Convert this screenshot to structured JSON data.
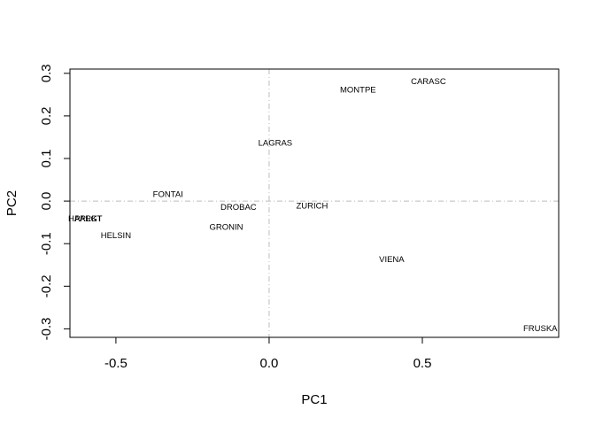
{
  "chart_data": {
    "type": "scatter",
    "title": "",
    "xlabel": "PC1",
    "ylabel": "PC2",
    "xlim": [
      -0.65,
      0.945
    ],
    "ylim": [
      -0.32,
      0.31
    ],
    "x_ticks": [
      -0.5,
      0.0,
      0.5
    ],
    "x_tick_labels": [
      "-0.5",
      "0.0",
      "0.5"
    ],
    "y_ticks": [
      -0.3,
      -0.2,
      -0.1,
      0.0,
      0.1,
      0.2,
      0.3
    ],
    "y_tick_labels": [
      "-0.3",
      "-0.2",
      "-0.1",
      "0.0",
      "0.1",
      "0.2",
      "0.3"
    ],
    "reference_lines": {
      "x": 0.0,
      "y": 0.0,
      "style": "dash-dot",
      "color": "#bdbdbd"
    },
    "grid": false,
    "points": [
      {
        "label": "CARASC",
        "x": 0.52,
        "y": 0.28
      },
      {
        "label": "MONTPE",
        "x": 0.29,
        "y": 0.26
      },
      {
        "label": "LAGRAS",
        "x": 0.02,
        "y": 0.135
      },
      {
        "label": "FONTAI",
        "x": -0.33,
        "y": 0.015
      },
      {
        "label": "DROBAC",
        "x": -0.1,
        "y": -0.015
      },
      {
        "label": "ZURICH",
        "x": 0.14,
        "y": -0.012
      },
      {
        "label": "HARLGT",
        "x": -0.6,
        "y": -0.042
      },
      {
        "label": "PARKT",
        "x": -0.59,
        "y": -0.042
      },
      {
        "label": "HELSIN",
        "x": -0.5,
        "y": -0.082
      },
      {
        "label": "GRONIN",
        "x": -0.14,
        "y": -0.062
      },
      {
        "label": "VIENA",
        "x": 0.4,
        "y": -0.138
      },
      {
        "label": "FRUSKA",
        "x": 0.885,
        "y": -0.3
      }
    ]
  }
}
